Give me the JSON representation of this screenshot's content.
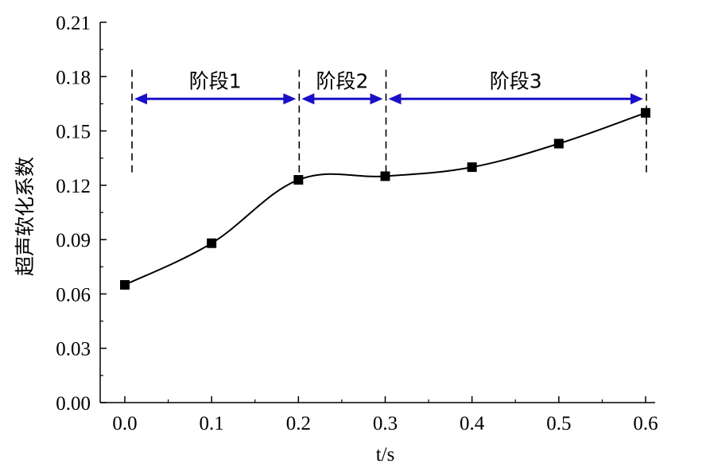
{
  "chart_data": {
    "type": "line",
    "xlabel": "t/s",
    "ylabel": "超声软化系数",
    "xlim": [
      0.0,
      0.6
    ],
    "ylim": [
      0.0,
      0.21
    ],
    "x_ticks": [
      "0.0",
      "0.1",
      "0.2",
      "0.3",
      "0.4",
      "0.5",
      "0.6"
    ],
    "y_ticks": [
      "0.00",
      "0.03",
      "0.06",
      "0.09",
      "0.12",
      "0.15",
      "0.18",
      "0.21"
    ],
    "grid": false,
    "marker": "square",
    "series": [
      {
        "x": [
          0.0,
          0.1,
          0.2,
          0.3,
          0.4,
          0.5,
          0.6
        ],
        "y": [
          0.065,
          0.088,
          0.123,
          0.125,
          0.13,
          0.143,
          0.16
        ]
      }
    ],
    "stages": [
      {
        "label": "阶段1",
        "start": 0.0,
        "end": 0.2
      },
      {
        "label": "阶段2",
        "start": 0.2,
        "end": 0.3
      },
      {
        "label": "阶段3",
        "start": 0.3,
        "end": 0.6
      }
    ],
    "stage_boundaries": [
      0.0,
      0.2,
      0.3,
      0.6
    ],
    "colors": {
      "data": "#000000",
      "arrow": "#1a10c8",
      "axis": "#000000"
    }
  }
}
